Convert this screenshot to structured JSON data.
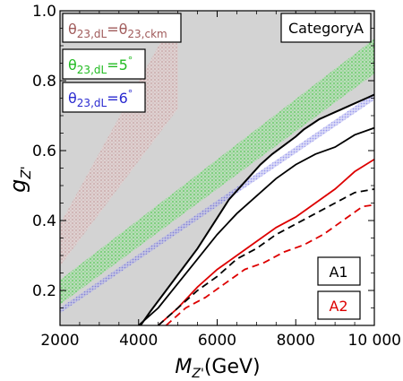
{
  "chart_data": {
    "type": "area",
    "xlabel": "M_Z'(GeV)",
    "xlabel_parts": {
      "main": "M",
      "sub": "Z'",
      "rest": "(GeV)"
    },
    "ylabel_parts": {
      "main": "g",
      "sub": "Z'"
    },
    "xlim": [
      2000,
      10000
    ],
    "ylim": [
      0.1,
      1.0
    ],
    "xticks": [
      2000,
      4000,
      6000,
      8000,
      10000
    ],
    "xtick_labels": [
      "2000",
      "4000",
      "6000",
      "8000",
      "10 000"
    ],
    "yticks": [
      0.2,
      0.4,
      0.6,
      0.8,
      1.0
    ],
    "ytick_labels": [
      "0.2",
      "0.4",
      "0.6",
      "0.8",
      "1.0"
    ],
    "category_label": "CategoryA",
    "excluded_region_color": "#d3d3d3",
    "black_boundary": {
      "x": [
        4050,
        4300,
        4700,
        5100,
        5500,
        5900,
        6300,
        6700,
        7100,
        7400,
        7700,
        8000,
        8200,
        8400,
        8600,
        8800,
        9000,
        9200,
        9500,
        9800,
        10000
      ],
      "y": [
        0.1,
        0.14,
        0.2,
        0.26,
        0.32,
        0.39,
        0.46,
        0.51,
        0.56,
        0.59,
        0.615,
        0.64,
        0.66,
        0.675,
        0.69,
        0.7,
        0.71,
        0.72,
        0.735,
        0.75,
        0.76
      ]
    },
    "bands": [
      {
        "name": "θ23,dL=θ23,ckm",
        "label": {
          "main": "θ",
          "sub": "23,dL",
          "mid": "=θ",
          "sub2": "23,ckm",
          "end": ""
        },
        "color": "#c99898",
        "opacity": 0.55,
        "x": [
          2000,
          5000
        ],
        "lower": [
          0.27,
          0.72
        ],
        "upper": [
          0.39,
          1.0
        ]
      },
      {
        "name": "θ23,dL=5°",
        "label": {
          "main": "θ",
          "sub": "23,dL",
          "mid": "=5",
          "sub2": "",
          "end": "°"
        },
        "color": "#33cc33",
        "opacity": 0.55,
        "x": [
          2000,
          10000
        ],
        "lower": [
          0.16,
          0.82
        ],
        "upper": [
          0.23,
          0.92
        ]
      },
      {
        "name": "θ23,dL=6°",
        "label": {
          "main": "θ",
          "sub": "23,dL",
          "mid": "=6",
          "sub2": "",
          "end": "°"
        },
        "color": "#3333dd",
        "opacity": 0.5,
        "x": [
          2000,
          10000
        ],
        "lower": [
          0.135,
          0.745
        ],
        "upper": [
          0.15,
          0.765
        ]
      }
    ],
    "series": [
      {
        "name": "A1",
        "color": "#000000",
        "x": [
          4000,
          4500,
          5000,
          5500,
          6000,
          6500,
          7000,
          7500,
          8000,
          8500,
          9000,
          9500,
          10000
        ],
        "y": [
          0.1,
          0.15,
          0.22,
          0.29,
          0.36,
          0.42,
          0.47,
          0.52,
          0.56,
          0.59,
          0.61,
          0.645,
          0.665
        ]
      },
      {
        "name": "A2",
        "color": "#dd0000",
        "x": [
          4500,
          5000,
          5500,
          6000,
          6500,
          7000,
          7500,
          8000,
          8500,
          9000,
          9500,
          10000
        ],
        "y": [
          0.1,
          0.15,
          0.21,
          0.26,
          0.3,
          0.34,
          0.38,
          0.41,
          0.45,
          0.49,
          0.54,
          0.575
        ]
      },
      {
        "name": "A1 dashed",
        "color": "#000000",
        "dashed": true,
        "x": [
          4500,
          5000,
          5500,
          6000,
          6500,
          7000,
          7500,
          8000,
          8500,
          9000,
          9500,
          10000
        ],
        "y": [
          0.1,
          0.15,
          0.2,
          0.24,
          0.29,
          0.32,
          0.36,
          0.39,
          0.42,
          0.45,
          0.48,
          0.49
        ]
      },
      {
        "name": "A2 dashed",
        "color": "#dd0000",
        "dashed": true,
        "x": [
          4700,
          5200,
          5700,
          6200,
          6700,
          7200,
          7700,
          8200,
          8700,
          9200,
          9700,
          10000
        ],
        "y": [
          0.1,
          0.15,
          0.18,
          0.22,
          0.26,
          0.28,
          0.31,
          0.33,
          0.36,
          0.4,
          0.44,
          0.445
        ]
      }
    ],
    "legend": [
      {
        "text": "A1",
        "color": "#000000"
      },
      {
        "text": "A2",
        "color": "#dd0000"
      }
    ]
  }
}
